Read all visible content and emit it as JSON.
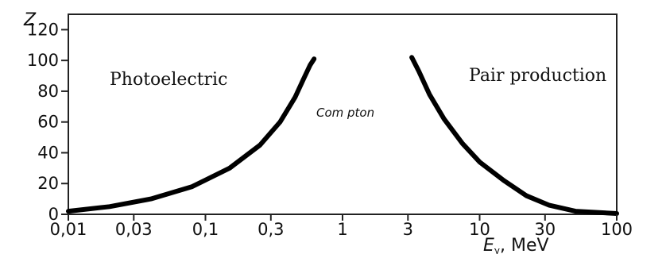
{
  "chart_data": {
    "type": "line",
    "title": "",
    "xlabel_symbol": "E",
    "xlabel_subscript": "γ",
    "xlabel_unit": ", MeV",
    "ylabel": "Z",
    "x_scale": "log",
    "xlim": [
      0.01,
      100
    ],
    "ylim": [
      0,
      130
    ],
    "x_ticks": [
      {
        "value": 0.01,
        "label": "0,01"
      },
      {
        "value": 0.03,
        "label": "0,03"
      },
      {
        "value": 0.1,
        "label": "0,1"
      },
      {
        "value": 0.3,
        "label": "0,3"
      },
      {
        "value": 1,
        "label": "1"
      },
      {
        "value": 3,
        "label": "3"
      },
      {
        "value": 10,
        "label": "10"
      },
      {
        "value": 30,
        "label": "30"
      },
      {
        "value": 100,
        "label": "100"
      }
    ],
    "y_ticks": [
      {
        "value": 0,
        "label": "0"
      },
      {
        "value": 20,
        "label": "20"
      },
      {
        "value": 40,
        "label": "40"
      },
      {
        "value": 60,
        "label": "60"
      },
      {
        "value": 80,
        "label": "80"
      },
      {
        "value": 100,
        "label": "100"
      },
      {
        "value": 120,
        "label": "120"
      }
    ],
    "grid": false,
    "region_labels": {
      "photoelectric": "Photoelectric",
      "compton": "Com pton",
      "pair": "Pair production"
    },
    "series": [
      {
        "id": "photo",
        "color": "#000000",
        "points": [
          [
            0.01,
            2
          ],
          [
            0.02,
            5
          ],
          [
            0.04,
            10
          ],
          [
            0.08,
            18
          ],
          [
            0.15,
            30
          ],
          [
            0.25,
            45
          ],
          [
            0.35,
            60
          ],
          [
            0.45,
            76
          ],
          [
            0.52,
            88
          ],
          [
            0.58,
            97
          ],
          [
            0.62,
            101
          ]
        ]
      },
      {
        "id": "pair",
        "color": "#000000",
        "points": [
          [
            3.2,
            102
          ],
          [
            3.6,
            93
          ],
          [
            4.3,
            78
          ],
          [
            5.5,
            62
          ],
          [
            7.5,
            46
          ],
          [
            10,
            34
          ],
          [
            15,
            22
          ],
          [
            22,
            12
          ],
          [
            32,
            6
          ],
          [
            50,
            2
          ],
          [
            100,
            0.5
          ]
        ]
      }
    ]
  }
}
